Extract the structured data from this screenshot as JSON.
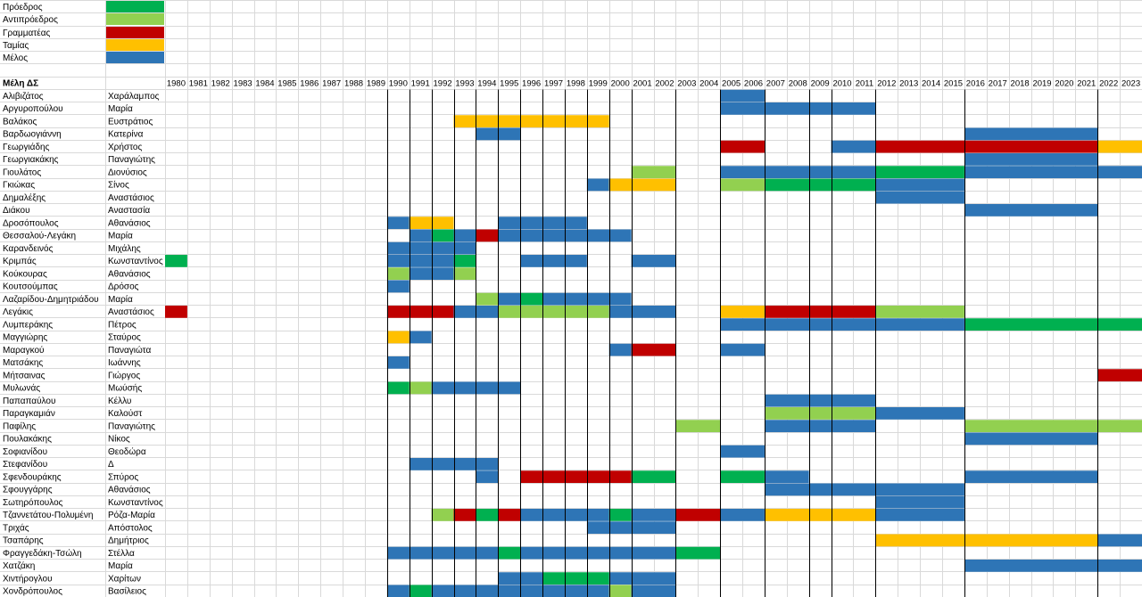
{
  "colors": {
    "president": "#00b050",
    "vice_president": "#92d050",
    "secretary": "#c00000",
    "treasurer": "#ffc000",
    "member": "#2e75b6"
  },
  "legend": [
    {
      "label": "Πρόεδρος",
      "role": "P"
    },
    {
      "label": "Αντιπρόεδρος",
      "role": "V"
    },
    {
      "label": "Γραμματέας",
      "role": "S"
    },
    {
      "label": "Ταμίας",
      "role": "T"
    },
    {
      "label": "Μέλος",
      "role": "M"
    }
  ],
  "header": {
    "title": "Μέλη ΔΣ"
  },
  "years": [
    "1980",
    "1981",
    "1982",
    "1983",
    "1984",
    "1985",
    "1986",
    "1987",
    "1988",
    "1989",
    "1990",
    "1991",
    "1992",
    "1993",
    "1994",
    "1995",
    "1996",
    "1997",
    "1998",
    "1999",
    "2000",
    "2001",
    "2002",
    "2003",
    "2004",
    "2005",
    "2006",
    "2007",
    "2008",
    "2009",
    "2010",
    "2011",
    "2012",
    "2013",
    "2014",
    "2015",
    "2016",
    "2017",
    "2018",
    "2019",
    "2020",
    "2021",
    "2022",
    "2023"
  ],
  "term_boundaries": [
    "1990",
    "1991",
    "1992",
    "1993",
    "1994",
    "1995",
    "1996",
    "1997",
    "1998",
    "1999",
    "2000",
    "2001",
    "2003",
    "2005",
    "2007",
    "2009",
    "2010",
    "2012",
    "2016",
    "2022"
  ],
  "members": [
    {
      "surname": "Αλιβιζάτος",
      "name": "Χαράλαμπος",
      "spans": [
        [
          "2005",
          "2006",
          "M"
        ]
      ]
    },
    {
      "surname": "Αργυροπούλου",
      "name": "Μαρία",
      "spans": [
        [
          "2005",
          "2011",
          "M"
        ]
      ]
    },
    {
      "surname": "Βαλάκος",
      "name": "Ευστράτιος",
      "spans": [
        [
          "1993",
          "1999",
          "T"
        ]
      ]
    },
    {
      "surname": "Βαρδωογιάννη",
      "name": "Κατερίνα",
      "spans": [
        [
          "1994",
          "1995",
          "M"
        ],
        [
          "2016",
          "2021",
          "M"
        ]
      ]
    },
    {
      "surname": "Γεωργιάδης",
      "name": "Χρήστος",
      "spans": [
        [
          "2005",
          "2006",
          "S"
        ],
        [
          "2010",
          "2011",
          "M"
        ],
        [
          "2012",
          "2021",
          "S"
        ],
        [
          "2022",
          "2023",
          "T"
        ]
      ]
    },
    {
      "surname": "Γεωργιακάκης",
      "name": "Παναγιώτης",
      "spans": [
        [
          "2016",
          "2021",
          "M"
        ]
      ]
    },
    {
      "surname": "Γιουλάτος",
      "name": "Διονύσιος",
      "spans": [
        [
          "2001",
          "2002",
          "V"
        ],
        [
          "2005",
          "2011",
          "M"
        ],
        [
          "2012",
          "2015",
          "P"
        ],
        [
          "2016",
          "2023",
          "M"
        ]
      ]
    },
    {
      "surname": "Γκιώκας",
      "name": "Σίνος",
      "spans": [
        [
          "1999",
          "1999",
          "M"
        ],
        [
          "2000",
          "2002",
          "T"
        ],
        [
          "2005",
          "2006",
          "V"
        ],
        [
          "2007",
          "2011",
          "P"
        ],
        [
          "2012",
          "2015",
          "M"
        ]
      ]
    },
    {
      "surname": "Δημαλέξης",
      "name": "Αναστάσιος",
      "spans": [
        [
          "2012",
          "2015",
          "M"
        ]
      ]
    },
    {
      "surname": "Διάκου",
      "name": "Αναστασία",
      "spans": [
        [
          "2016",
          "2021",
          "M"
        ]
      ]
    },
    {
      "surname": "Δροσόπουλος",
      "name": "Αθανάσιος",
      "spans": [
        [
          "1990",
          "1990",
          "M"
        ],
        [
          "1991",
          "1992",
          "T"
        ],
        [
          "1995",
          "1998",
          "M"
        ]
      ]
    },
    {
      "surname": "Θεσσαλού-Λεγάκη",
      "name": "Μαρία",
      "spans": [
        [
          "1991",
          "1991",
          "M"
        ],
        [
          "1992",
          "1992",
          "P"
        ],
        [
          "1993",
          "1993",
          "M"
        ],
        [
          "1994",
          "1994",
          "S"
        ],
        [
          "1995",
          "2000",
          "M"
        ]
      ]
    },
    {
      "surname": "Καρανδεινός",
      "name": "Μιχάλης",
      "spans": [
        [
          "1990",
          "1993",
          "M"
        ]
      ]
    },
    {
      "surname": "Κριμπάς",
      "name": "Κωνσταντίνος",
      "spans": [
        [
          "1980",
          "1980",
          "P"
        ],
        [
          "1990",
          "1992",
          "M"
        ],
        [
          "1993",
          "1993",
          "P"
        ],
        [
          "1996",
          "1998",
          "M"
        ],
        [
          "2001",
          "2002",
          "M"
        ]
      ]
    },
    {
      "surname": "Κούκουρας",
      "name": "Αθανάσιος",
      "spans": [
        [
          "1990",
          "1990",
          "V"
        ],
        [
          "1991",
          "1992",
          "M"
        ],
        [
          "1993",
          "1993",
          "V"
        ]
      ]
    },
    {
      "surname": "Κουτσούμπας",
      "name": "Δρόσος",
      "spans": [
        [
          "1990",
          "1990",
          "M"
        ]
      ]
    },
    {
      "surname": "Λαζαρίδου-Δημητριάδου",
      "name": "Μαρία",
      "spans": [
        [
          "1994",
          "1994",
          "V"
        ],
        [
          "1995",
          "1995",
          "M"
        ],
        [
          "1996",
          "1996",
          "P"
        ],
        [
          "1997",
          "2000",
          "M"
        ]
      ]
    },
    {
      "surname": "Λεγάκις",
      "name": "Αναστάσιος",
      "spans": [
        [
          "1980",
          "1980",
          "S"
        ],
        [
          "1990",
          "1992",
          "S"
        ],
        [
          "1993",
          "1994",
          "M"
        ],
        [
          "1995",
          "1999",
          "V"
        ],
        [
          "2000",
          "2002",
          "M"
        ],
        [
          "2005",
          "2006",
          "T"
        ],
        [
          "2007",
          "2011",
          "S"
        ],
        [
          "2012",
          "2015",
          "V"
        ]
      ]
    },
    {
      "surname": "Λυμπεράκης",
      "name": "Πέτρος",
      "spans": [
        [
          "2005",
          "2015",
          "M"
        ],
        [
          "2016",
          "2023",
          "P"
        ]
      ]
    },
    {
      "surname": "Μαγγιώρης",
      "name": "Σταύρος",
      "spans": [
        [
          "1990",
          "1990",
          "T"
        ],
        [
          "1991",
          "1991",
          "M"
        ]
      ]
    },
    {
      "surname": "Μαραγκού",
      "name": "Παναγιώτα",
      "spans": [
        [
          "2000",
          "2000",
          "M"
        ],
        [
          "2001",
          "2002",
          "S"
        ],
        [
          "2005",
          "2006",
          "M"
        ]
      ]
    },
    {
      "surname": "Ματσάκης",
      "name": "Ιωάννης",
      "spans": [
        [
          "1990",
          "1990",
          "M"
        ]
      ]
    },
    {
      "surname": "Μήτσαινας",
      "name": "Γιώργος",
      "spans": [
        [
          "2022",
          "2023",
          "S"
        ]
      ]
    },
    {
      "surname": "Μυλωνάς",
      "name": "Μωύσής",
      "spans": [
        [
          "1990",
          "1990",
          "P"
        ],
        [
          "1991",
          "1991",
          "V"
        ],
        [
          "1992",
          "1995",
          "M"
        ]
      ]
    },
    {
      "surname": "Παπαπαύλου",
      "name": "Κέλλυ",
      "spans": [
        [
          "2007",
          "2011",
          "M"
        ]
      ]
    },
    {
      "surname": "Παραγκαμιάν",
      "name": "Καλούστ",
      "spans": [
        [
          "2007",
          "2011",
          "V"
        ],
        [
          "2012",
          "2015",
          "M"
        ]
      ]
    },
    {
      "surname": "Παφίλης",
      "name": "Παναγιώτης",
      "spans": [
        [
          "2003",
          "2004",
          "V"
        ],
        [
          "2007",
          "2011",
          "M"
        ],
        [
          "2016",
          "2023",
          "V"
        ]
      ]
    },
    {
      "surname": "Πουλακάκης",
      "name": "Νίκος",
      "spans": [
        [
          "2016",
          "2021",
          "M"
        ]
      ]
    },
    {
      "surname": "Σοφιανίδου",
      "name": "Θεοδώρα",
      "spans": [
        [
          "2005",
          "2006",
          "M"
        ]
      ]
    },
    {
      "surname": "Στεφανίδου",
      "name": "Δ",
      "spans": [
        [
          "1991",
          "1994",
          "M"
        ]
      ]
    },
    {
      "surname": "Σφενδουράκης",
      "name": "Σπύρος",
      "spans": [
        [
          "1994",
          "1994",
          "M"
        ],
        [
          "1996",
          "2000",
          "S"
        ],
        [
          "2001",
          "2002",
          "P"
        ],
        [
          "2005",
          "2006",
          "P"
        ],
        [
          "2007",
          "2008",
          "M"
        ],
        [
          "2016",
          "2021",
          "M"
        ]
      ]
    },
    {
      "surname": "Σφουγγάρης",
      "name": "Αθανάσιος",
      "spans": [
        [
          "2007",
          "2015",
          "M"
        ]
      ]
    },
    {
      "surname": "Σωτηρόπουλος",
      "name": "Κωνσταντίνος",
      "spans": [
        [
          "2012",
          "2015",
          "M"
        ]
      ]
    },
    {
      "surname": "Τζαννετάτου-Πολυμένη",
      "name": "Ρόζα-Μαρία",
      "spans": [
        [
          "1992",
          "1992",
          "V"
        ],
        [
          "1993",
          "1993",
          "S"
        ],
        [
          "1994",
          "1994",
          "P"
        ],
        [
          "1995",
          "1995",
          "S"
        ],
        [
          "1996",
          "1999",
          "M"
        ],
        [
          "2000",
          "2000",
          "P"
        ],
        [
          "2001",
          "2002",
          "M"
        ],
        [
          "2003",
          "2004",
          "S"
        ],
        [
          "2005",
          "2006",
          "M"
        ],
        [
          "2007",
          "2011",
          "T"
        ],
        [
          "2012",
          "2015",
          "M"
        ]
      ]
    },
    {
      "surname": "Τριχάς",
      "name": "Απόστολος",
      "spans": [
        [
          "1999",
          "2002",
          "M"
        ]
      ]
    },
    {
      "surname": "Τσαπάρης",
      "name": "Δημήτριος",
      "spans": [
        [
          "2012",
          "2021",
          "T"
        ],
        [
          "2022",
          "2023",
          "M"
        ]
      ]
    },
    {
      "surname": "Φραγγεδάκη-Τσώλη",
      "name": "Στέλλα",
      "spans": [
        [
          "1990",
          "1994",
          "M"
        ],
        [
          "1995",
          "1995",
          "P"
        ],
        [
          "1996",
          "2002",
          "M"
        ],
        [
          "2003",
          "2004",
          "P"
        ]
      ]
    },
    {
      "surname": "Χατζάκη",
      "name": "Μαρία",
      "spans": [
        [
          "2016",
          "2023",
          "M"
        ]
      ]
    },
    {
      "surname": "Χιντήρογλου",
      "name": "Χαρίτων",
      "spans": [
        [
          "1995",
          "1996",
          "M"
        ],
        [
          "1997",
          "1999",
          "P"
        ],
        [
          "2000",
          "2002",
          "M"
        ]
      ]
    },
    {
      "surname": "Χονδρόπουλος",
      "name": "Βασίλειος",
      "spans": [
        [
          "1990",
          "1990",
          "M"
        ],
        [
          "1991",
          "1991",
          "P"
        ],
        [
          "1992",
          "1999",
          "M"
        ],
        [
          "2000",
          "2000",
          "V"
        ],
        [
          "2001",
          "2002",
          "M"
        ]
      ]
    }
  ]
}
